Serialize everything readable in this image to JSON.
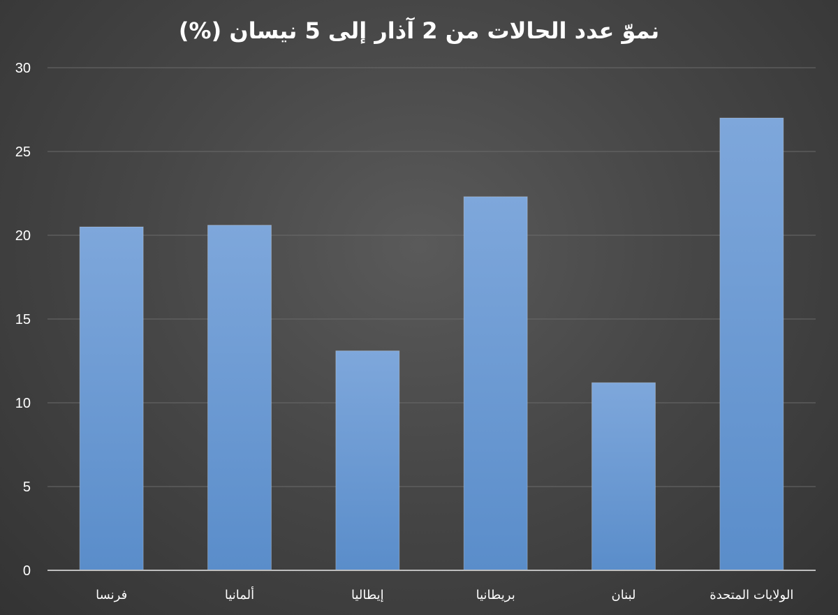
{
  "chart_data": {
    "type": "bar",
    "title": "نموّ عدد الحالات من 2 آذار إلى 5 نيسان (%)",
    "xlabel": "",
    "ylabel": "",
    "categories": [
      "فرنسا",
      "ألمانيا",
      "إيطاليا",
      "بريطانيا",
      "لبنان",
      "الولايات المتحدة"
    ],
    "values": [
      20.5,
      20.6,
      13.1,
      22.3,
      11.2,
      27.0
    ],
    "ylim": [
      0,
      30
    ],
    "yticks": [
      "0",
      "5",
      "10",
      "15",
      "20",
      "25",
      "30"
    ],
    "grid": true,
    "legend": "none",
    "colors": {
      "background_center": "#5a5a5a",
      "background_edge": "#333333",
      "bar_top": "#7ea7db",
      "bar_bottom": "#5a8dca",
      "gridline": "#6a6a6a",
      "axis": "#bfbfbf",
      "text": "#ffffff"
    }
  }
}
